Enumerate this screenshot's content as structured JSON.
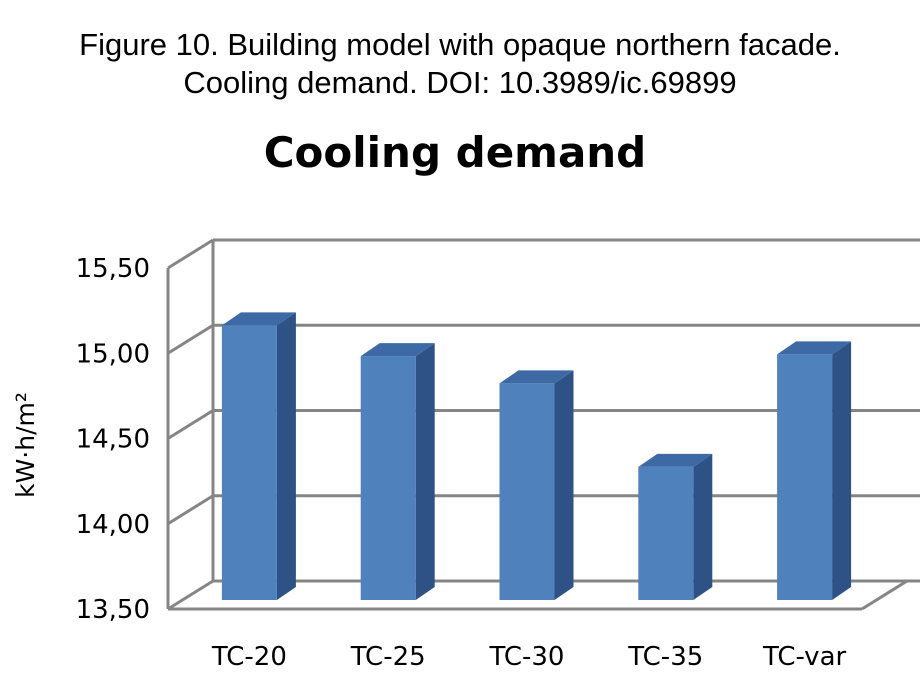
{
  "figure_caption": {
    "line1": "Figure 10. Building model with opaque northern facade.",
    "line2": "Cooling demand. DOI: 10.3989/ic.69899"
  },
  "chart_data": {
    "type": "bar",
    "title": "Cooling demand",
    "xlabel": "",
    "ylabel": "kW·h/m²",
    "categories": [
      "TC-20",
      "TC-25",
      "TC-30",
      "TC-35",
      "TC-var"
    ],
    "values": [
      15.14,
      14.96,
      14.8,
      14.31,
      14.97
    ],
    "ylim": [
      13.5,
      15.5
    ],
    "yticks": [
      13.5,
      14.0,
      14.5,
      15.0,
      15.5
    ],
    "ytick_labels": [
      "13,50",
      "14,00",
      "14,50",
      "15,00",
      "15,50"
    ],
    "grid": true,
    "legend": "none",
    "style": "3d-column",
    "colors": {
      "bar_front": "#4f81bd",
      "bar_side": "#2f5286",
      "bar_top": "#3d6aa5",
      "gridline": "#858585"
    }
  }
}
